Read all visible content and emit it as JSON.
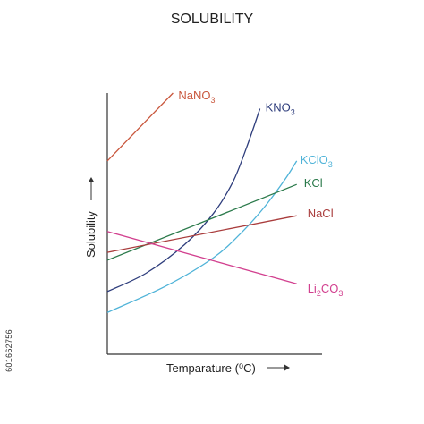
{
  "page": {
    "side_id": "601662756"
  },
  "chart_data": {
    "type": "line",
    "title": "SOLUBILITY",
    "xlabel": "Temparature (⁰C)",
    "ylabel": "Solubility",
    "xlim": [
      0,
      100
    ],
    "ylim": [
      0,
      100
    ],
    "grid": false,
    "axis_arrows": true,
    "series": [
      {
        "name": "NaNO3",
        "label_main": "NaNO",
        "label_sub": "3",
        "color": "#c9573d",
        "x": [
          0,
          34
        ],
        "y": [
          74,
          100
        ]
      },
      {
        "name": "KNO3",
        "label_main": "KNO",
        "label_sub": "3",
        "color": "#2e3d7c",
        "x": [
          0,
          20,
          40,
          55,
          65,
          72,
          79
        ],
        "y": [
          24,
          31,
          42,
          54,
          66,
          79,
          94
        ]
      },
      {
        "name": "KClO3",
        "label_main": "KClO",
        "label_sub": "3",
        "color": "#4fb3d8",
        "x": [
          0,
          30,
          55,
          70,
          82,
          92,
          98
        ],
        "y": [
          16,
          26,
          37,
          47,
          57,
          67,
          74
        ]
      },
      {
        "name": "KCl",
        "label_main": "KCl",
        "label_sub": "",
        "color": "#2b7a4b",
        "x": [
          0,
          98
        ],
        "y": [
          36,
          65
        ]
      },
      {
        "name": "NaCl",
        "label_main": "NaCl",
        "label_sub": "",
        "color": "#a93c3c",
        "x": [
          0,
          98
        ],
        "y": [
          39,
          53
        ]
      },
      {
        "name": "Li2CO3",
        "label_main": "Li",
        "label_sub": "2",
        "label_tail": "CO",
        "label_sub2": "3",
        "color": "#d2408f",
        "x": [
          0,
          98
        ],
        "y": [
          47,
          27
        ]
      }
    ]
  }
}
